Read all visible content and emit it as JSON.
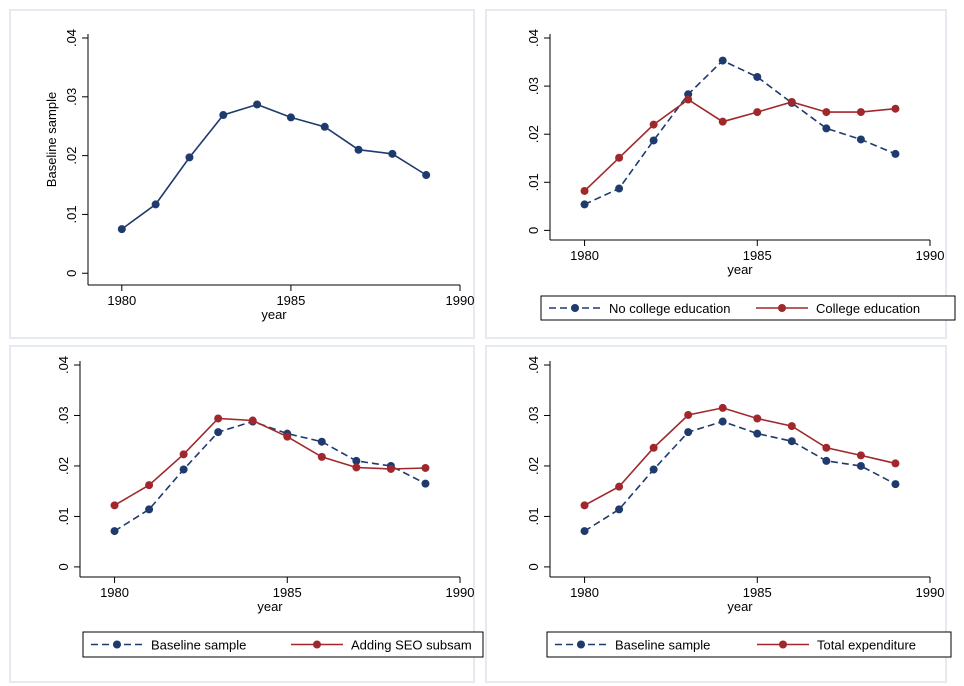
{
  "colors": {
    "navy": "#1f3b6e",
    "maroon": "#a0282d",
    "frame": "#e6eaf0"
  },
  "chart_data": [
    {
      "type": "line",
      "x": [
        1980,
        1981,
        1982,
        1983,
        1984,
        1985,
        1986,
        1987,
        1988,
        1989
      ],
      "xlabel": "year",
      "ylabel": "Baseline sample",
      "xlim": [
        1979,
        1990
      ],
      "ylim": [
        -0.002,
        0.04
      ],
      "xticks": [
        "1980",
        "1985",
        "1990"
      ],
      "yticks": [
        "0",
        ".01",
        ".02",
        ".03",
        ".04"
      ],
      "series": [
        {
          "style": "solid",
          "color": "#1f3b6e",
          "values": [
            0.0075,
            0.0117,
            0.0197,
            0.0269,
            0.0287,
            0.0265,
            0.0249,
            0.021,
            0.0203,
            0.0167
          ]
        }
      ],
      "legend": []
    },
    {
      "type": "line",
      "x": [
        1980,
        1981,
        1982,
        1983,
        1984,
        1985,
        1986,
        1987,
        1988,
        1989
      ],
      "xlabel": "year",
      "ylabel": "",
      "xlim": [
        1979,
        1990
      ],
      "ylim": [
        -0.002,
        0.04
      ],
      "xticks": [
        "1980",
        "1985",
        "1990"
      ],
      "yticks": [
        "0",
        ".01",
        ".02",
        ".03",
        ".04"
      ],
      "series": [
        {
          "name": "No college education",
          "style": "dashed",
          "color": "#1f3b6e",
          "values": [
            0.0054,
            0.0087,
            0.0187,
            0.0283,
            0.0353,
            0.0319,
            0.0265,
            0.0212,
            0.0189,
            0.0159
          ]
        },
        {
          "name": "College education",
          "style": "solid",
          "color": "#a0282d",
          "values": [
            0.0082,
            0.0151,
            0.022,
            0.0272,
            0.0226,
            0.0246,
            0.0267,
            0.0246,
            0.0246,
            0.0253
          ]
        }
      ],
      "legend": [
        "No college education",
        "College education"
      ]
    },
    {
      "type": "line",
      "x": [
        1980,
        1981,
        1982,
        1983,
        1984,
        1985,
        1986,
        1987,
        1988,
        1989
      ],
      "xlabel": "year",
      "ylabel": "",
      "xlim": [
        1979,
        1990
      ],
      "ylim": [
        -0.002,
        0.04
      ],
      "xticks": [
        "1980",
        "1985",
        "1990"
      ],
      "yticks": [
        "0",
        ".01",
        ".02",
        ".03",
        ".04"
      ],
      "series": [
        {
          "name": "Baseline sample",
          "style": "dashed",
          "color": "#1f3b6e",
          "values": [
            0.0071,
            0.0114,
            0.0193,
            0.0267,
            0.0288,
            0.0264,
            0.0248,
            0.021,
            0.02,
            0.0165
          ]
        },
        {
          "name": "Adding SEO subsam",
          "style": "solid",
          "color": "#a0282d",
          "values": [
            0.0122,
            0.0162,
            0.0223,
            0.0294,
            0.029,
            0.0258,
            0.0218,
            0.0197,
            0.0194,
            0.0196
          ]
        }
      ],
      "legend": [
        "Baseline sample",
        "Adding SEO subsam"
      ]
    },
    {
      "type": "line",
      "x": [
        1980,
        1981,
        1982,
        1983,
        1984,
        1985,
        1986,
        1987,
        1988,
        1989
      ],
      "xlabel": "year",
      "ylabel": "",
      "xlim": [
        1979,
        1990
      ],
      "ylim": [
        -0.002,
        0.04
      ],
      "xticks": [
        "1980",
        "1985",
        "1990"
      ],
      "yticks": [
        "0",
        ".01",
        ".02",
        ".03",
        ".04"
      ],
      "series": [
        {
          "name": "Baseline sample",
          "style": "dashed",
          "color": "#1f3b6e",
          "values": [
            0.0071,
            0.0114,
            0.0193,
            0.0267,
            0.0288,
            0.0264,
            0.0249,
            0.021,
            0.02,
            0.0164
          ]
        },
        {
          "name": "Total expenditure",
          "style": "solid",
          "color": "#a0282d",
          "values": [
            0.0122,
            0.0159,
            0.0236,
            0.0301,
            0.0315,
            0.0294,
            0.0279,
            0.0236,
            0.0221,
            0.0205
          ]
        }
      ],
      "legend": [
        "Baseline sample",
        "Total expenditure"
      ]
    }
  ]
}
